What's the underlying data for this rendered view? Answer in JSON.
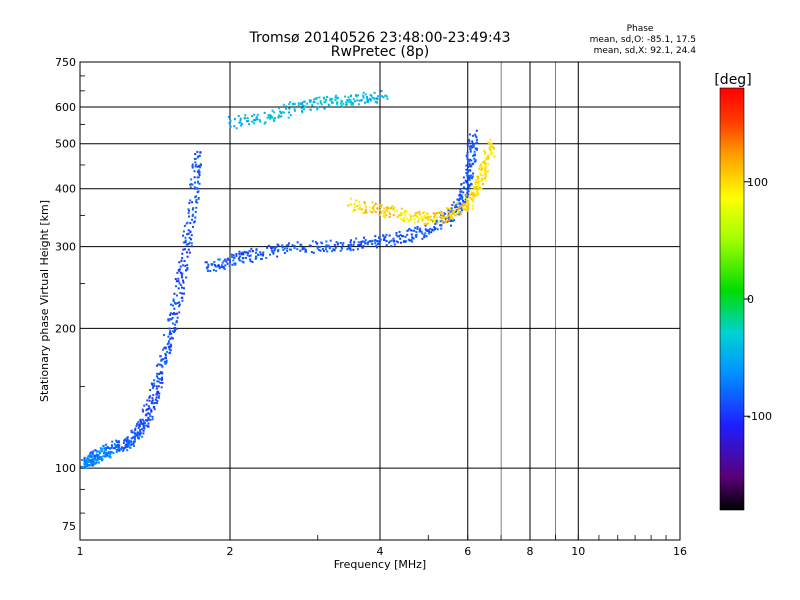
{
  "chart_data": {
    "type": "scatter",
    "title": "Tromsø 20140526 23:48:00-23:49:43",
    "subtitle": "RwPretec (8p)",
    "xlabel": "Frequency [MHz]",
    "ylabel": "Stationary phase Virtual Height [km]",
    "x_scale": "log",
    "y_scale": "log",
    "xlim": [
      1,
      16
    ],
    "ylim": [
      70,
      750
    ],
    "x_ticks": [
      1,
      2,
      4,
      6,
      8,
      10,
      16
    ],
    "x_tick_labels": [
      "1",
      "2",
      "4",
      "6",
      "8",
      "10",
      "16"
    ],
    "y_ticks": [
      75,
      100,
      200,
      300,
      400,
      500,
      600,
      750
    ],
    "y_tick_labels": [
      "75",
      "100",
      "200",
      "300",
      "400",
      "500",
      "600",
      "750"
    ],
    "grid": true,
    "phase_info": {
      "heading": "Phase",
      "o_line": "mean, sd,O: -85.1, 17.5",
      "x_line": "mean, sd,X:  92.1, 24.4"
    },
    "colorbar": {
      "unit": "[deg]",
      "range": [
        -180,
        180
      ],
      "ticks": [
        100,
        0,
        -100
      ],
      "tick_labels": [
        "100",
        "0",
        "-100"
      ],
      "colormap": "rainbow",
      "colors": [
        "#000000",
        "#5a007a",
        "#1e1eff",
        "#00b4ff",
        "#00d278",
        "#00dc00",
        "#c8ff00",
        "#ffff00",
        "#ffb400",
        "#ff5000",
        "#ff0000"
      ]
    },
    "series": [
      {
        "trace": "O-mode E-region / F1 lower trace (blue)",
        "points": [
          {
            "f": 1.02,
            "h": 102,
            "phase": -60
          },
          {
            "f": 1.05,
            "h": 104,
            "phase": -70
          },
          {
            "f": 1.08,
            "h": 106,
            "phase": -75
          },
          {
            "f": 1.12,
            "h": 108,
            "phase": -60
          },
          {
            "f": 1.18,
            "h": 111,
            "phase": -80
          },
          {
            "f": 1.25,
            "h": 113,
            "phase": -85
          },
          {
            "f": 1.3,
            "h": 118,
            "phase": -85
          },
          {
            "f": 1.35,
            "h": 125,
            "phase": -90
          },
          {
            "f": 1.4,
            "h": 140,
            "phase": -95
          },
          {
            "f": 1.45,
            "h": 160,
            "phase": -90
          },
          {
            "f": 1.5,
            "h": 185,
            "phase": -85
          },
          {
            "f": 1.55,
            "h": 215,
            "phase": -90
          },
          {
            "f": 1.6,
            "h": 260,
            "phase": -95
          },
          {
            "f": 1.65,
            "h": 320,
            "phase": -90
          },
          {
            "f": 1.7,
            "h": 400,
            "phase": -85
          },
          {
            "f": 1.72,
            "h": 480,
            "phase": -90
          }
        ]
      },
      {
        "trace": "O-mode F-layer trace (blue)",
        "points": [
          {
            "f": 1.8,
            "h": 270,
            "phase": -85
          },
          {
            "f": 2.0,
            "h": 280,
            "phase": -85
          },
          {
            "f": 2.2,
            "h": 287,
            "phase": -90
          },
          {
            "f": 2.5,
            "h": 295,
            "phase": -85
          },
          {
            "f": 3.0,
            "h": 300,
            "phase": -85
          },
          {
            "f": 3.5,
            "h": 303,
            "phase": -90
          },
          {
            "f": 4.0,
            "h": 308,
            "phase": -85
          },
          {
            "f": 4.5,
            "h": 315,
            "phase": -90
          },
          {
            "f": 5.0,
            "h": 325,
            "phase": -85
          },
          {
            "f": 5.5,
            "h": 345,
            "phase": -90
          },
          {
            "f": 5.8,
            "h": 370,
            "phase": -85
          },
          {
            "f": 6.0,
            "h": 410,
            "phase": -90
          },
          {
            "f": 6.1,
            "h": 460,
            "phase": -85
          },
          {
            "f": 6.15,
            "h": 520,
            "phase": -90
          }
        ]
      },
      {
        "trace": "X-mode F-layer trace (yellow/orange)",
        "points": [
          {
            "f": 3.5,
            "h": 370,
            "phase": 100
          },
          {
            "f": 4.0,
            "h": 360,
            "phase": 110
          },
          {
            "f": 4.5,
            "h": 350,
            "phase": 95
          },
          {
            "f": 5.0,
            "h": 345,
            "phase": 100
          },
          {
            "f": 5.5,
            "h": 350,
            "phase": 110
          },
          {
            "f": 6.0,
            "h": 370,
            "phase": 100
          },
          {
            "f": 6.3,
            "h": 400,
            "phase": 105
          },
          {
            "f": 6.5,
            "h": 450,
            "phase": 95
          },
          {
            "f": 6.7,
            "h": 500,
            "phase": 100
          }
        ]
      },
      {
        "trace": "Upper trace (cyan)",
        "points": [
          {
            "f": 2.0,
            "h": 555,
            "phase": -50
          },
          {
            "f": 2.4,
            "h": 570,
            "phase": -40
          },
          {
            "f": 2.8,
            "h": 605,
            "phase": -45
          },
          {
            "f": 3.2,
            "h": 615,
            "phase": -35
          },
          {
            "f": 3.6,
            "h": 620,
            "phase": -40
          },
          {
            "f": 4.1,
            "h": 635,
            "phase": -45
          }
        ]
      }
    ]
  }
}
